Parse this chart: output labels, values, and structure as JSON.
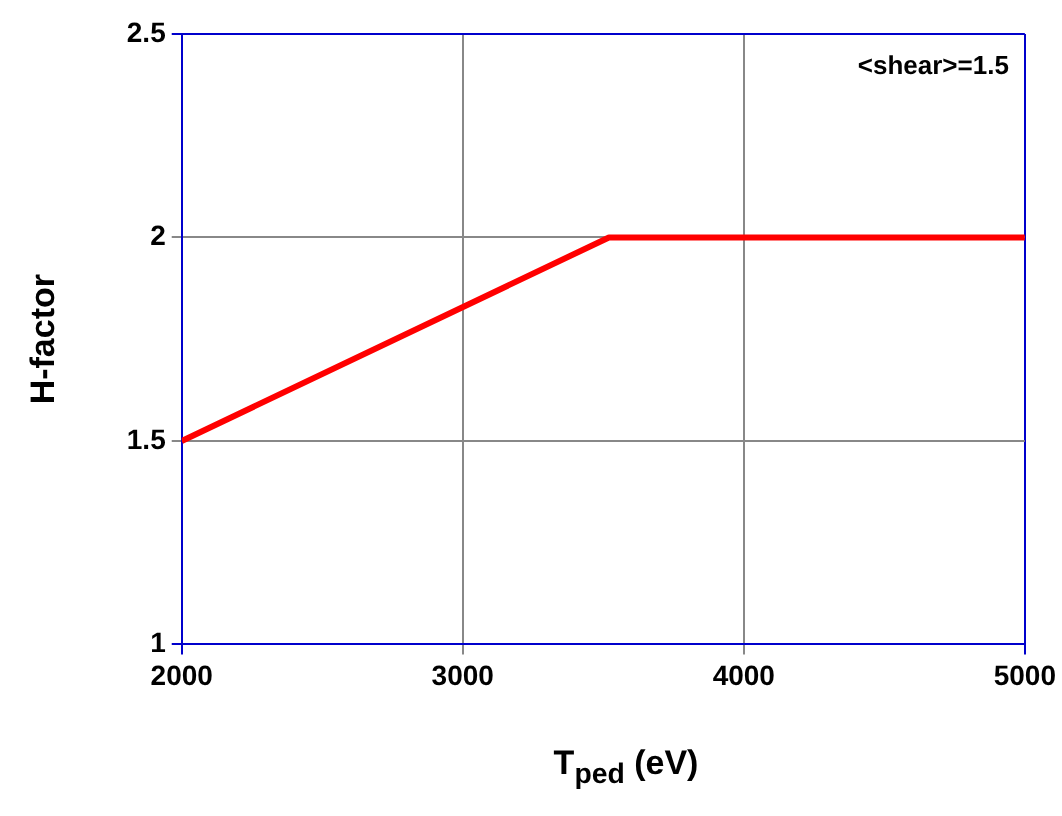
{
  "chart_data": {
    "type": "line",
    "xlabel": "T$_{ped}$  (eV)",
    "ylabel": "H-factor",
    "annotations": [
      "<shear>=1.5"
    ],
    "series": [
      {
        "color": "#ff0000",
        "x": [
          2000,
          3520,
          5000
        ],
        "values": [
          1.5,
          2.0,
          2.0
        ]
      }
    ],
    "xlim": [
      2000,
      5000
    ],
    "xticks": [
      2000,
      3000,
      4000,
      5000
    ],
    "ylim": [
      1,
      2.5
    ],
    "yticks": [
      1,
      1.5,
      2,
      2.5
    ],
    "grid": true,
    "legend": false,
    "marker": "none",
    "line_style": "solid"
  }
}
